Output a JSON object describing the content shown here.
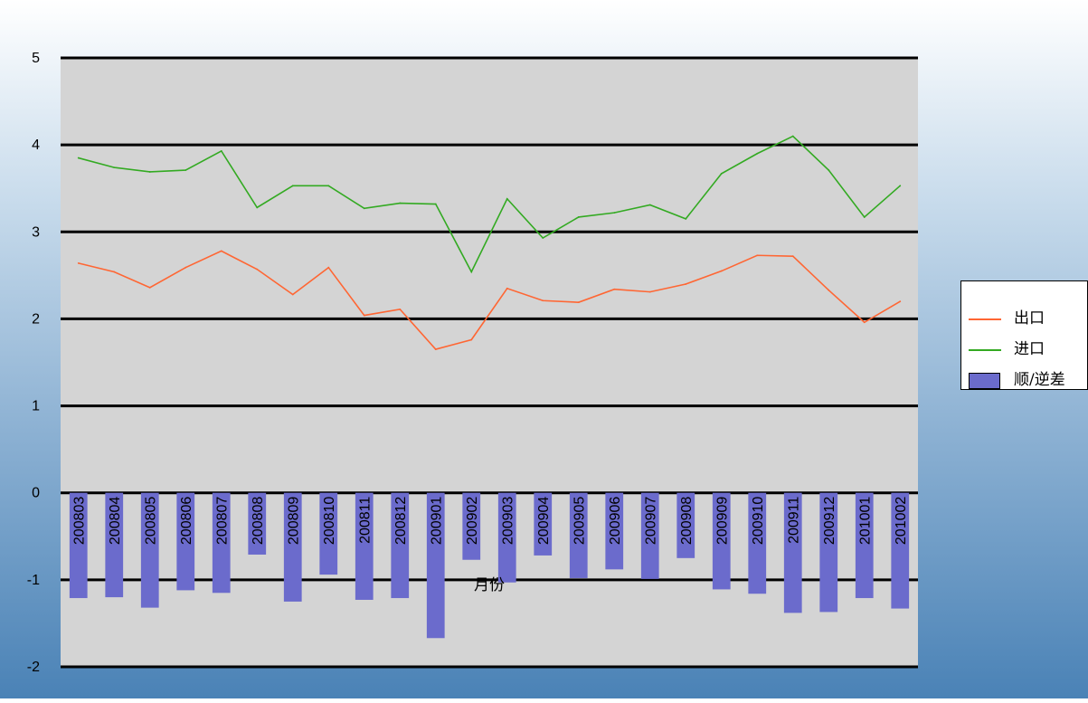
{
  "chart_data": {
    "type": "bar",
    "title": "",
    "xlabel": "月份",
    "ylabel": "",
    "ylim": [
      -2,
      5
    ],
    "yticks": [
      5,
      4,
      3,
      2,
      1,
      0,
      -1,
      -2
    ],
    "grid": true,
    "legend_position": "right",
    "categories": [
      "200803",
      "200804",
      "200805",
      "200806",
      "200807",
      "200808",
      "200809",
      "200810",
      "200811",
      "200812",
      "200901",
      "200902",
      "200903",
      "200904",
      "200905",
      "200906",
      "200907",
      "200908",
      "200909",
      "200910",
      "200911",
      "200912",
      "201001",
      "201002"
    ],
    "series": [
      {
        "name": "出口",
        "kind": "line",
        "color": "#ff6633",
        "values": [
          2.64,
          2.54,
          2.36,
          2.59,
          2.78,
          2.57,
          2.28,
          2.59,
          2.04,
          2.11,
          1.65,
          1.76,
          2.35,
          2.21,
          2.19,
          2.34,
          2.31,
          2.4,
          2.55,
          2.73,
          2.72,
          2.33,
          1.96,
          2.2
        ]
      },
      {
        "name": "进口",
        "kind": "line",
        "color": "#33aa22",
        "values": [
          3.85,
          3.74,
          3.69,
          3.71,
          3.93,
          3.28,
          3.53,
          3.53,
          3.27,
          3.33,
          3.32,
          2.54,
          3.38,
          2.93,
          3.17,
          3.22,
          3.31,
          3.15,
          3.67,
          3.9,
          4.1,
          3.71,
          3.17,
          3.53
        ]
      },
      {
        "name": "顺/逆差",
        "kind": "bar",
        "color": "#6b6bcc",
        "values": [
          -1.21,
          -1.2,
          -1.32,
          -1.12,
          -1.15,
          -0.71,
          -1.25,
          -0.94,
          -1.23,
          -1.21,
          -1.67,
          -0.77,
          -1.03,
          -0.72,
          -0.98,
          -0.88,
          -0.99,
          -0.75,
          -1.11,
          -1.16,
          -1.38,
          -1.37,
          -1.21,
          -1.33
        ]
      }
    ],
    "colors": {
      "plot_background": "#d4d4d4",
      "gridline": "#000000",
      "bar_fill": "#6b6bcc"
    }
  }
}
